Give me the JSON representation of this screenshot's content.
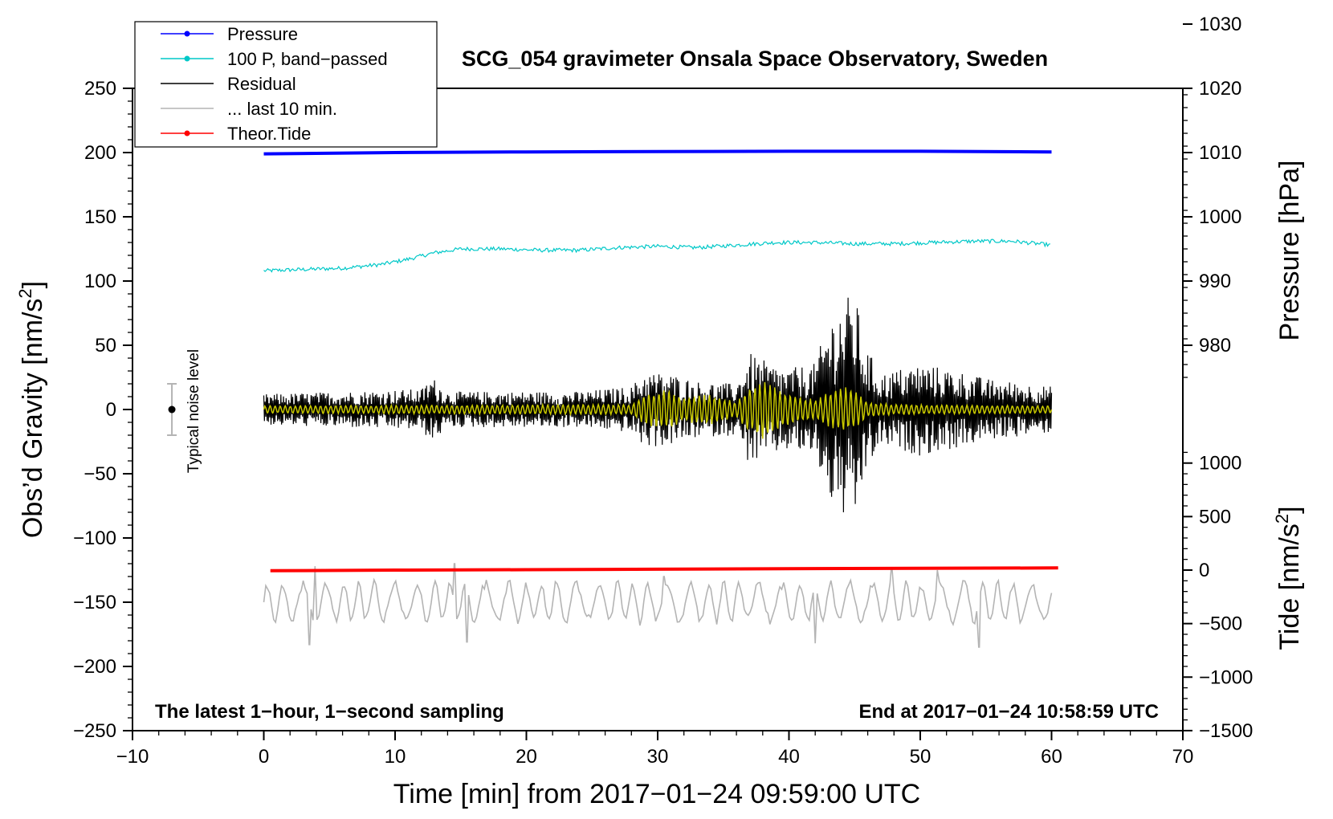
{
  "chart_data": {
    "type": "line",
    "title": "SCG_054 gravimeter Onsala Space Observatory, Sweden",
    "xlabel": "Time [min] from 2017−01−24 09:59:00 UTC",
    "ylabel": "Obs’d Gravity [nm/s",
    "ylabel_sup": "2",
    "ylabel_close": "]",
    "y2label_pressure": "Pressure [hPa]",
    "y2label_tide": "Tide [nm/s",
    "y2label_tide_sup": "2",
    "y2label_tide_close": "]",
    "xlim": [
      -10,
      70
    ],
    "ylim": [
      -250,
      250
    ],
    "x_ticks": [
      -10,
      0,
      10,
      20,
      30,
      40,
      50,
      60,
      70
    ],
    "x_tick_labels": [
      "−10",
      "0",
      "10",
      "20",
      "30",
      "40",
      "50",
      "60",
      "70"
    ],
    "y_ticks": [
      -250,
      -200,
      -150,
      -100,
      -50,
      0,
      50,
      100,
      150,
      200,
      250
    ],
    "y_tick_labels": [
      "−250",
      "−200",
      "−150",
      "−100",
      "−50",
      "0",
      "50",
      "100",
      "150",
      "200",
      "250"
    ],
    "pressure_ticks": [
      980,
      990,
      1000,
      1010,
      1020,
      1030
    ],
    "pressure_tick_labels": [
      "980",
      "990",
      "1000",
      "1010",
      "1020",
      "1030"
    ],
    "pressure_to_gravity": {
      "p0": 980,
      "g0": 50,
      "scale": 5
    },
    "tide_ticks": [
      -1500,
      -1000,
      -500,
      0,
      500,
      1000
    ],
    "tide_tick_labels": [
      "−1500",
      "−1000",
      "−500",
      "0",
      "500",
      "1000"
    ],
    "tide_to_gravity": {
      "t0": 0,
      "g0": -125,
      "scale": 0.0833
    },
    "legend": [
      {
        "label": "Pressure",
        "color": "#0000ff",
        "marker": true
      },
      {
        "label": "100 P, band−passed",
        "color": "#00c8c8",
        "marker": true
      },
      {
        "label": "Residual",
        "color": "#000000",
        "marker": false
      },
      {
        "label": "... last 10 min.",
        "color": "#b4b4b4",
        "marker": false
      },
      {
        "label": "Theor.Tide",
        "color": "#ff0000",
        "marker": true
      }
    ],
    "noise_label": "Typical noise level",
    "noise_bar": {
      "x": -7,
      "center": 0,
      "half_range": 20
    },
    "note_left": "The latest 1−hour, 1−second sampling",
    "note_right": "End at 2017−01−24 10:58:59 UTC",
    "series": [
      {
        "name": "Pressure",
        "color": "#0000ff",
        "width": 4,
        "x": [
          0,
          10,
          20,
          30,
          40,
          50,
          60
        ],
        "y": [
          199,
          200,
          200.5,
          200.8,
          201,
          201,
          200.5
        ]
      },
      {
        "name": "100 P, band-passed",
        "color": "#00c8c8",
        "width": 1.2,
        "noise": 1.5,
        "x": [
          0,
          3,
          6,
          9,
          11,
          13,
          15,
          18,
          21,
          24,
          27,
          30,
          33,
          36,
          39,
          42,
          45,
          48,
          51,
          54,
          57,
          60
        ],
        "y": [
          108,
          109,
          110,
          113,
          117,
          122,
          125,
          125,
          124,
          124,
          126,
          127,
          126,
          128,
          130,
          130,
          129,
          129,
          130,
          131,
          131,
          128
        ]
      },
      {
        "name": "Residual",
        "color": "#000000",
        "width": 1.2,
        "envelope_x": [
          0,
          12,
          12.8,
          14,
          24,
          28,
          29,
          31,
          33,
          36,
          37,
          38.5,
          40,
          42,
          43,
          44,
          45,
          45.8,
          47,
          50,
          53,
          55,
          60
        ],
        "envelope_y": [
          12,
          16,
          26,
          14,
          14,
          18,
          30,
          28,
          22,
          20,
          44,
          36,
          32,
          36,
          70,
          84,
          92,
          50,
          28,
          36,
          30,
          24,
          18
        ]
      },
      {
        "name": "Band-passed residual",
        "color": "#c8c800",
        "width": 1.5,
        "envelope_x": [
          0,
          28,
          29,
          30.5,
          32,
          34,
          36,
          37,
          38,
          40,
          42,
          43,
          44,
          45,
          46,
          48,
          60
        ],
        "envelope_y": [
          3,
          4,
          12,
          16,
          10,
          12,
          6,
          18,
          24,
          12,
          8,
          14,
          18,
          16,
          6,
          4,
          3
        ]
      },
      {
        "name": "... last 10 min.",
        "color": "#b4b4b4",
        "width": 1.6,
        "base": -150,
        "amp": 14,
        "spikes_x": [
          3.9,
          14.5,
          30.5,
          47.8,
          51.3
        ],
        "spikes_y": [
          -122,
          -120,
          -130,
          -123,
          -125
        ],
        "troughs_x": [
          3.5,
          15.5,
          42,
          54.5
        ],
        "troughs_y": [
          -183,
          -181,
          -182,
          -185
        ]
      },
      {
        "name": "Theor.Tide",
        "color": "#ff0000",
        "width": 4,
        "x": [
          0.5,
          10,
          20,
          30,
          40,
          50,
          60.5
        ],
        "y": [
          -125.5,
          -125,
          -124.7,
          -124.3,
          -123.9,
          -123.6,
          -123.3
        ]
      }
    ]
  }
}
